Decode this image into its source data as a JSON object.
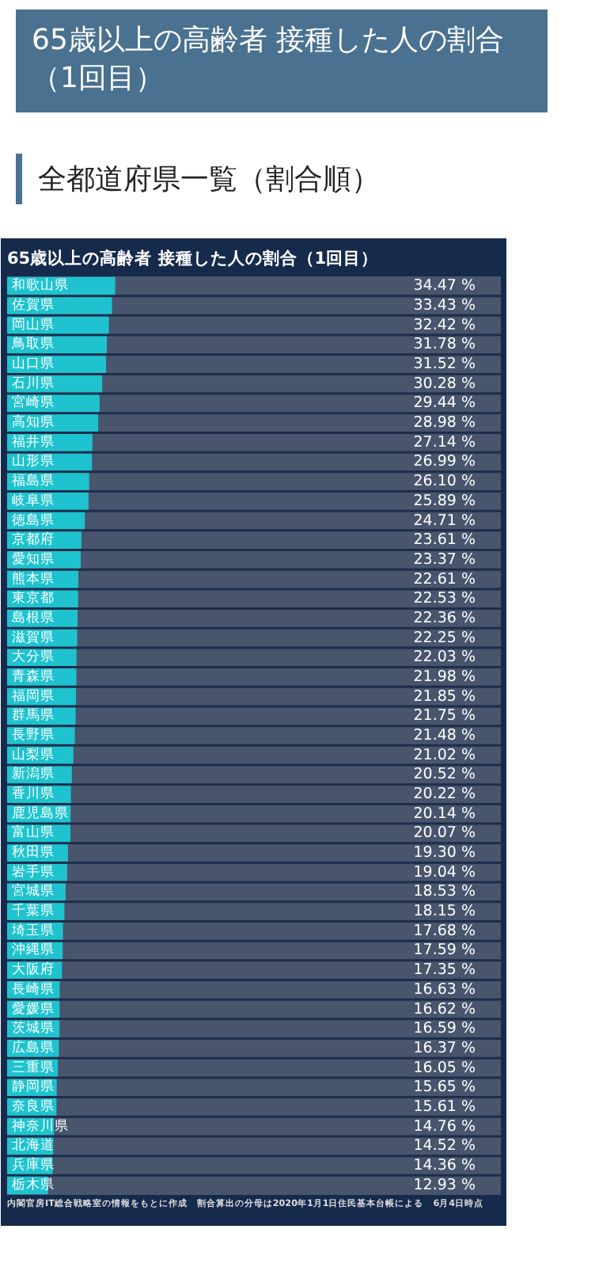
{
  "chart_data": {
    "type": "bar",
    "orientation": "horizontal",
    "title": "65歳以上の高齢者 接種した人の割合（1回目）",
    "subtitle": "全都道府県一覧（割合順）",
    "categories": [
      "和歌山県",
      "佐賀県",
      "岡山県",
      "鳥取県",
      "山口県",
      "石川県",
      "宮崎県",
      "高知県",
      "福井県",
      "山形県",
      "福島県",
      "岐阜県",
      "徳島県",
      "京都府",
      "愛知県",
      "熊本県",
      "東京都",
      "島根県",
      "滋賀県",
      "大分県",
      "青森県",
      "福岡県",
      "群馬県",
      "長野県",
      "山梨県",
      "新潟県",
      "香川県",
      "鹿児島県",
      "富山県",
      "秋田県",
      "岩手県",
      "宮城県",
      "千葉県",
      "埼玉県",
      "沖縄県",
      "大阪府",
      "長崎県",
      "愛媛県",
      "茨城県",
      "広島県",
      "三重県",
      "静岡県",
      "奈良県",
      "神奈川県",
      "北海道",
      "兵庫県",
      "栃木県"
    ],
    "values": [
      34.47,
      33.43,
      32.42,
      31.78,
      31.52,
      30.28,
      29.44,
      28.98,
      27.14,
      26.99,
      26.1,
      25.89,
      24.71,
      23.61,
      23.37,
      22.61,
      22.53,
      22.36,
      22.25,
      22.03,
      21.98,
      21.85,
      21.75,
      21.48,
      21.02,
      20.52,
      20.22,
      20.14,
      20.07,
      19.3,
      19.04,
      18.53,
      18.15,
      17.68,
      17.59,
      17.35,
      16.63,
      16.62,
      16.59,
      16.37,
      16.05,
      15.65,
      15.61,
      14.76,
      14.52,
      14.36,
      12.93
    ],
    "value_labels": [
      "34.47 %",
      "33.43 %",
      "32.42 %",
      "31.78 %",
      "31.52 %",
      "30.28 %",
      "29.44 %",
      "28.98 %",
      "27.14 %",
      "26.99 %",
      "26.10 %",
      "25.89 %",
      "24.71 %",
      "23.61 %",
      "23.37 %",
      "22.61 %",
      "22.53 %",
      "22.36 %",
      "22.25 %",
      "22.03 %",
      "21.98 %",
      "21.85 %",
      "21.75 %",
      "21.48 %",
      "21.02 %",
      "20.52 %",
      "20.22 %",
      "20.14 %",
      "20.07 %",
      "19.30 %",
      "19.04 %",
      "18.53 %",
      "18.15 %",
      "17.68 %",
      "17.59 %",
      "17.35 %",
      "16.63 %",
      "16.62 %",
      "16.59 %",
      "16.37 %",
      "16.05 %",
      "15.65 %",
      "15.61 %",
      "14.76 %",
      "14.52 %",
      "14.36 %",
      "12.93 %"
    ],
    "color": "#1fc3cf",
    "annotations": [
      "内閣官房IT総合戦略室の情報をもとに作成　割合算出の分母は2020年1月1日住民基本台帳による　6月4日時点"
    ]
  }
}
